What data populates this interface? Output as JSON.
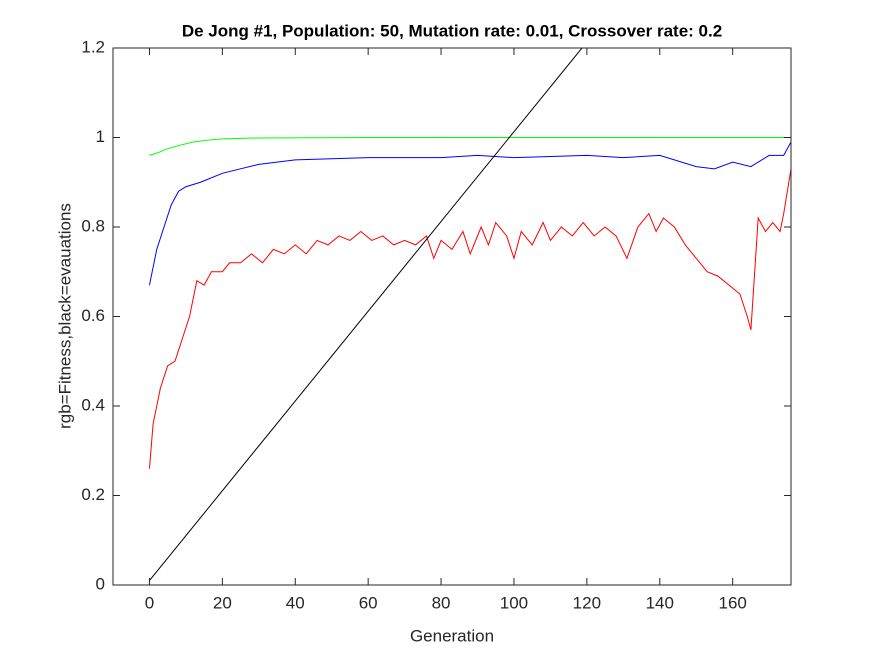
{
  "chart_data": {
    "type": "line",
    "title": "De Jong #1, Population: 50, Mutation rate: 0.01, Crossover rate: 0.2",
    "x_label": "Generation",
    "y_label": "rgb=Fitness,black=evauations",
    "xlim": [
      -10,
      176
    ],
    "ylim": [
      0,
      1.2
    ],
    "xticks": [
      0,
      20,
      40,
      60,
      80,
      100,
      120,
      140,
      160
    ],
    "yticks": [
      0,
      0.2,
      0.4,
      0.6,
      0.8,
      1,
      1.2
    ],
    "series": [
      {
        "name": "red",
        "color": "#ff0000",
        "x": [
          0,
          1,
          3,
          5,
          7,
          9,
          11,
          13,
          15,
          17,
          20,
          22,
          25,
          28,
          31,
          34,
          37,
          40,
          43,
          46,
          49,
          52,
          55,
          58,
          61,
          64,
          67,
          70,
          73,
          76,
          78,
          80,
          83,
          86,
          88,
          91,
          93,
          95,
          98,
          100,
          102,
          105,
          108,
          110,
          113,
          116,
          119,
          122,
          125,
          128,
          131,
          134,
          137,
          139,
          141,
          144,
          147,
          150,
          153,
          156,
          159,
          162,
          164,
          165,
          167,
          169,
          171,
          172,
          173,
          174,
          176
        ],
        "values": [
          0.26,
          0.36,
          0.44,
          0.49,
          0.5,
          0.55,
          0.6,
          0.68,
          0.67,
          0.7,
          0.7,
          0.72,
          0.72,
          0.74,
          0.72,
          0.75,
          0.74,
          0.76,
          0.74,
          0.77,
          0.76,
          0.78,
          0.77,
          0.79,
          0.77,
          0.78,
          0.76,
          0.77,
          0.76,
          0.78,
          0.73,
          0.77,
          0.75,
          0.79,
          0.74,
          0.8,
          0.76,
          0.81,
          0.78,
          0.73,
          0.79,
          0.76,
          0.81,
          0.77,
          0.8,
          0.78,
          0.81,
          0.78,
          0.8,
          0.78,
          0.73,
          0.8,
          0.83,
          0.79,
          0.82,
          0.8,
          0.76,
          0.73,
          0.7,
          0.69,
          0.67,
          0.65,
          0.6,
          0.57,
          0.82,
          0.79,
          0.81,
          0.8,
          0.79,
          0.83,
          0.93
        ]
      },
      {
        "name": "green",
        "color": "#00ff00",
        "x": [
          0,
          2,
          5,
          8,
          12,
          16,
          20,
          30,
          60,
          100,
          140,
          176
        ],
        "values": [
          0.96,
          0.965,
          0.975,
          0.982,
          0.99,
          0.994,
          0.997,
          0.999,
          1,
          1,
          1,
          1
        ]
      },
      {
        "name": "blue",
        "color": "#0000ff",
        "x": [
          0,
          2,
          4,
          6,
          8,
          10,
          14,
          20,
          30,
          40,
          60,
          80,
          90,
          100,
          120,
          130,
          140,
          150,
          155,
          160,
          165,
          170,
          174,
          176
        ],
        "values": [
          0.67,
          0.75,
          0.8,
          0.85,
          0.88,
          0.89,
          0.9,
          0.92,
          0.94,
          0.95,
          0.955,
          0.955,
          0.96,
          0.955,
          0.96,
          0.955,
          0.96,
          0.935,
          0.93,
          0.945,
          0.935,
          0.96,
          0.96,
          0.99
        ]
      },
      {
        "name": "black",
        "color": "#000000",
        "x": [
          0,
          176
        ],
        "values": [
          0.01,
          1.775
        ]
      }
    ]
  }
}
